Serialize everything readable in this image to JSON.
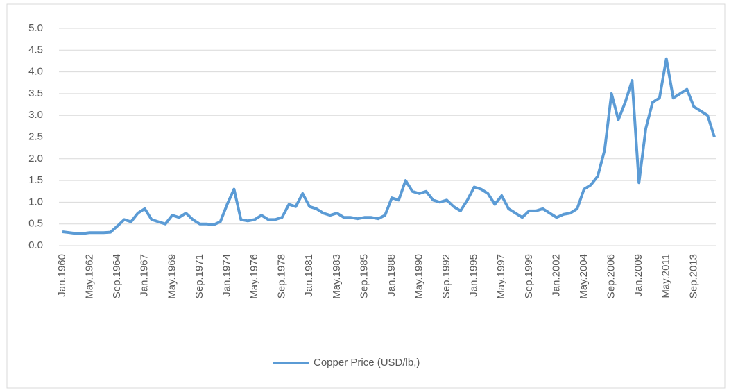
{
  "chart_data": {
    "type": "line",
    "categories": [
      "Jan.1960",
      null,
      null,
      null,
      "May.1962",
      null,
      null,
      null,
      "Sep.1964",
      null,
      null,
      null,
      "Jan.1967",
      null,
      null,
      null,
      "May.1969",
      null,
      null,
      null,
      "Sep.1971",
      null,
      null,
      null,
      "Jan.1974",
      null,
      null,
      null,
      "May.1976",
      null,
      null,
      null,
      "Sep.1978",
      null,
      null,
      null,
      "Jan.1981",
      null,
      null,
      null,
      "May.1983",
      null,
      null,
      null,
      "Sep.1985",
      null,
      null,
      null,
      "Jan.1988",
      null,
      null,
      null,
      "May.1990",
      null,
      null,
      null,
      "Sep.1992",
      null,
      null,
      null,
      "Jan.1995",
      null,
      null,
      null,
      "May.1997",
      null,
      null,
      null,
      "Sep.1999",
      null,
      null,
      null,
      "Jan.2002",
      null,
      null,
      null,
      "May.2004",
      null,
      null,
      null,
      "Sep.2006",
      null,
      null,
      null,
      "Jan.2009",
      null,
      null,
      null,
      "May.2011",
      null,
      null,
      null,
      "Sep.2013",
      null,
      null,
      null
    ],
    "series": [
      {
        "name": "Copper Price (USD/lb,)",
        "color": "#5b9bd5",
        "values": [
          0.32,
          0.3,
          0.28,
          0.28,
          0.3,
          0.3,
          0.3,
          0.31,
          0.45,
          0.6,
          0.55,
          0.75,
          0.85,
          0.6,
          0.55,
          0.5,
          0.7,
          0.65,
          0.75,
          0.6,
          0.5,
          0.5,
          0.48,
          0.55,
          0.95,
          1.3,
          0.6,
          0.57,
          0.6,
          0.7,
          0.6,
          0.6,
          0.65,
          0.95,
          0.9,
          1.2,
          0.9,
          0.85,
          0.75,
          0.7,
          0.75,
          0.65,
          0.65,
          0.62,
          0.65,
          0.65,
          0.62,
          0.7,
          1.1,
          1.05,
          1.5,
          1.25,
          1.2,
          1.25,
          1.05,
          1.0,
          1.05,
          0.9,
          0.8,
          1.05,
          1.35,
          1.3,
          1.2,
          0.95,
          1.15,
          0.85,
          0.75,
          0.65,
          0.8,
          0.8,
          0.85,
          0.75,
          0.65,
          0.72,
          0.75,
          0.85,
          1.3,
          1.4,
          1.6,
          2.2,
          3.5,
          2.9,
          3.3,
          3.8,
          1.45,
          2.7,
          3.3,
          3.4,
          4.3,
          3.4,
          3.5,
          3.6,
          3.2,
          3.1,
          3.0,
          2.5
        ]
      }
    ],
    "ylim": [
      0,
      5
    ],
    "yticks": [
      {
        "value": 0,
        "label": "0.0"
      },
      {
        "value": 0.5,
        "label": "0.5"
      },
      {
        "value": 1,
        "label": "1.0"
      },
      {
        "value": 1.5,
        "label": "1.5"
      },
      {
        "value": 2,
        "label": "2.0"
      },
      {
        "value": 2.5,
        "label": "2.5"
      },
      {
        "value": 3,
        "label": "3.0"
      },
      {
        "value": 3.5,
        "label": "3.5"
      },
      {
        "value": 4,
        "label": "4.0"
      },
      {
        "value": 4.5,
        "label": "4.5"
      },
      {
        "value": 5,
        "label": "5.0"
      }
    ],
    "grid": true,
    "legend": "bottom"
  }
}
